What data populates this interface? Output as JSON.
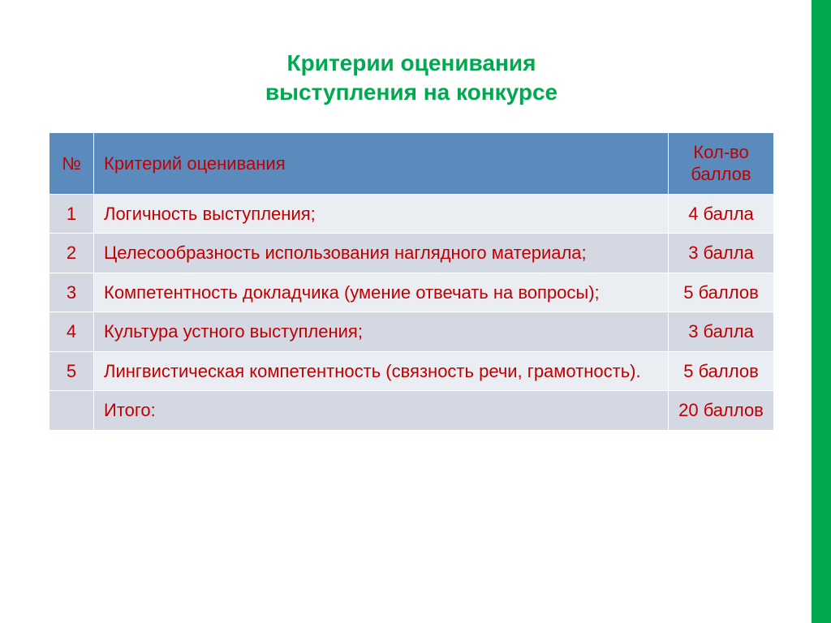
{
  "title_line1": "Критерии оценивания",
  "title_line2": "выступления на конкурсе",
  "columns": {
    "num": "№",
    "criteria": "Критерий оценивания",
    "points": "Кол-во баллов"
  },
  "rows": [
    {
      "num": "1",
      "criteria": "Логичность выступления;",
      "points": "4 балла"
    },
    {
      "num": "2",
      "criteria": "Целесообразность использования наглядного материала;",
      "points": "3 балла"
    },
    {
      "num": "3",
      "criteria": "Компетентность докладчика (умение отвечать на вопросы);",
      "points": "5 баллов"
    },
    {
      "num": "4",
      "criteria": "Культура устного выступления;",
      "points": "3 балла"
    },
    {
      "num": "5",
      "criteria": "Лингвистическая компетентность (связность речи, грамотность).",
      "points": "5 баллов"
    }
  ],
  "total": {
    "label": "Итого:",
    "points": "20 баллов"
  },
  "colors": {
    "header_bg": "#5b8bbd",
    "text_red": "#c00000",
    "accent_green": "#00a94f",
    "row_light": "#eaedf2",
    "row_dark": "#d3d8e2"
  }
}
